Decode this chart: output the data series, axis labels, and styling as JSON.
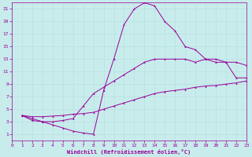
{
  "background_color": "#c8ecec",
  "line_color": "#990099",
  "grid_color": "#b8e0e0",
  "xlabel": "Windchill (Refroidissement éolien,°C)",
  "xlim": [
    0,
    23
  ],
  "ylim": [
    0,
    22
  ],
  "xticks": [
    0,
    1,
    2,
    3,
    4,
    5,
    6,
    7,
    8,
    9,
    10,
    11,
    12,
    13,
    14,
    15,
    16,
    17,
    18,
    19,
    20,
    21,
    22,
    23
  ],
  "yticks": [
    1,
    3,
    5,
    7,
    9,
    11,
    13,
    15,
    17,
    19,
    21
  ],
  "line1_x": [
    1,
    2,
    3,
    4,
    5,
    6,
    7,
    8,
    9,
    10,
    11,
    12,
    13,
    14,
    15,
    16,
    17,
    18,
    19,
    20,
    21,
    22,
    23
  ],
  "line1_y": [
    4.0,
    3.2,
    3.0,
    2.5,
    2.0,
    1.5,
    1.2,
    1.0,
    8.0,
    13.0,
    18.5,
    21.0,
    22.0,
    21.5,
    19.0,
    17.5,
    15.0,
    14.5,
    13.0,
    12.5,
    12.5,
    10.0,
    10.0
  ],
  "line2_x": [
    1,
    2,
    3,
    4,
    5,
    6,
    7,
    8,
    9,
    10,
    11,
    12,
    13,
    14,
    15,
    16,
    17,
    18,
    19,
    20,
    21,
    22,
    23
  ],
  "line2_y": [
    4.0,
    3.5,
    3.0,
    3.0,
    3.2,
    3.5,
    5.5,
    7.5,
    8.5,
    9.5,
    10.5,
    11.5,
    12.5,
    13.0,
    13.0,
    13.0,
    13.0,
    12.5,
    13.0,
    13.0,
    12.5,
    12.5,
    12.0
  ],
  "line3_x": [
    1,
    2,
    3,
    4,
    5,
    6,
    7,
    8,
    9,
    10,
    11,
    12,
    13,
    14,
    15,
    16,
    17,
    18,
    19,
    20,
    21,
    22,
    23
  ],
  "line3_y": [
    4.0,
    3.8,
    3.8,
    3.9,
    4.0,
    4.2,
    4.3,
    4.5,
    5.0,
    5.5,
    6.0,
    6.5,
    7.0,
    7.5,
    7.8,
    8.0,
    8.2,
    8.5,
    8.7,
    8.8,
    9.0,
    9.2,
    9.5
  ]
}
